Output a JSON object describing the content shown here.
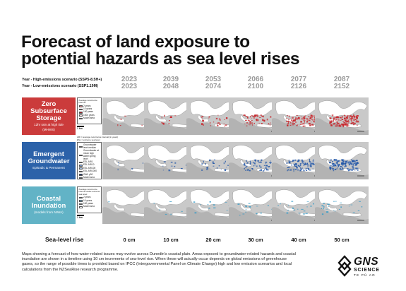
{
  "title_line1": "Forecast of land exposure to",
  "title_line2": "potential hazards as sea level rises",
  "scenario_high": "Year - High-emissions scenario (SSP5-8.5H+)",
  "scenario_low": "Year - Low-emissions scenario (SSP1.19M)",
  "columns": [
    {
      "year_high": "2023",
      "year_low": "2023",
      "rise": "0 cm",
      "level": 0
    },
    {
      "year_high": "2039",
      "year_low": "2048",
      "rise": "10 cm",
      "level": 1
    },
    {
      "year_high": "2053",
      "year_low": "2074",
      "rise": "20 cm",
      "level": 2
    },
    {
      "year_high": "2066",
      "year_low": "2100",
      "rise": "30 cm",
      "level": 3
    },
    {
      "year_high": "2077",
      "year_low": "2126",
      "rise": "40 cm",
      "level": 4
    },
    {
      "year_high": "2087",
      "year_low": "2152",
      "rise": "50 cm",
      "level": 5
    }
  ],
  "sea_level_rise_label": "Sea-level rise",
  "rows": [
    {
      "title_lines": [
        "Zero",
        "Subsurface",
        "Storage"
      ],
      "subtitle_lines": [
        "12hr rain at high tide",
        "(MHWS)"
      ],
      "color": "#cb3b3b",
      "hazard_color": "#c8262c",
      "legend_header": "Average recurrence interval",
      "legend_items": [
        {
          "label": "2 years",
          "color": "#d9848a"
        },
        {
          "label": "10 years",
          "color": "#c63b43"
        },
        {
          "label": "100 years",
          "color": "#9e1d24"
        },
        {
          "label": "1000 years",
          "color": "#ead4d6"
        },
        {
          "label": "Model area",
          "color": "#ffffff"
        }
      ],
      "scale_label": "1 km",
      "notes": [
        "ARI = average recurrence interval (in years)",
        "ESL = extreme sea level"
      ]
    },
    {
      "title_lines": [
        "Emergent",
        "Groundwater"
      ],
      "subtitle_lines": [
        "Episodic & Permanent"
      ],
      "color": "#2c62a9",
      "hazard_color": "#2357a8",
      "legend_header": "",
      "legend_items": [
        {
          "label": "Groundwater level median",
          "color": "#1f3f7a"
        },
        {
          "label": "Groundwater at mean high water spring level",
          "color": "#2f5aa0"
        },
        {
          "label": "ESL ARI1",
          "color": "#4a78c0"
        },
        {
          "label": "ESL ARI10",
          "color": "#6f98d2"
        },
        {
          "label": "ESL ARI100",
          "color": "#98b8e2"
        },
        {
          "label": "ESL ARI1000",
          "color": "#c3d6ef"
        },
        {
          "label": "GWL p90",
          "color": "#17326a"
        },
        {
          "label": "Model area",
          "color": "#ffffff"
        }
      ],
      "scale_label": "",
      "notes": []
    },
    {
      "title_lines": [
        "Coastal",
        "Inundation"
      ],
      "subtitle_lines": [
        "(models from NIWA)"
      ],
      "color": "#62b3c6",
      "hazard_color": "#3a9cc7",
      "legend_header": "Average recurrence interval under extreme sea level",
      "legend_items": [
        {
          "label": "2 years",
          "color": "#a9d7ec"
        },
        {
          "label": "10 years",
          "color": "#6fbadd"
        },
        {
          "label": "100 years",
          "color": "#3a90c4"
        },
        {
          "label": "Model area",
          "color": "#ffffff"
        }
      ],
      "scale_label": "1 km",
      "notes": []
    }
  ],
  "footer": "Maps showing a forecast of how water-related issues may evolve across Dunedin's coastal plain. Areas exposed to groundwater-related hazards and coastal inundation are shown in a timeline using 10 cm increments of sea-level rise. When these will actually occur depends on global emissions of greenhouse gases, so the range of possible times is provided based on IPCC (Intergovernmental Panel on Climate Change) high and low emission scenarios and local calculations from the NZSeaRise research programme.",
  "logo": {
    "name": "GNS",
    "line2": "SCIENCE",
    "line3": "TE PŪ AO"
  }
}
